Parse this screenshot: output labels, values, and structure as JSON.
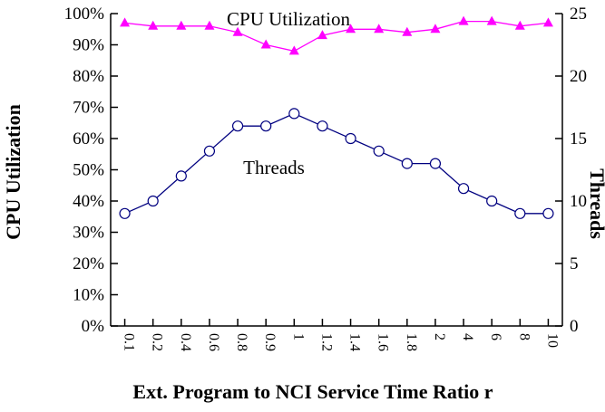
{
  "title": "CPU Utilization",
  "threads_inplot_label": "Threads",
  "axes": {
    "left_label": "CPU Utilization",
    "right_label": "Threads",
    "x_label": "Ext. Program to NCI Service Time Ratio r",
    "left_ticks": [
      "0%",
      "10%",
      "20%",
      "30%",
      "40%",
      "50%",
      "60%",
      "70%",
      "80%",
      "90%",
      "100%"
    ],
    "right_ticks": [
      "0",
      "5",
      "10",
      "15",
      "20",
      "25"
    ]
  },
  "colors": {
    "cpu_series": "#ff00ff",
    "threads_series": "#000080",
    "axis": "#000000"
  },
  "chart_data": {
    "type": "line",
    "categories": [
      "0.1",
      "0.2",
      "0.4",
      "0.6",
      "0.8",
      "0.9",
      "1",
      "1.2",
      "1.4",
      "1.6",
      "1.8",
      "2",
      "4",
      "6",
      "8",
      "10"
    ],
    "series": [
      {
        "name": "CPU Utilization",
        "axis": "left",
        "marker": "triangle",
        "color": "#ff00ff",
        "values": [
          97,
          96,
          96,
          96,
          94,
          90,
          88,
          93,
          95,
          95,
          94,
          95,
          97.5,
          97.5,
          96,
          97
        ]
      },
      {
        "name": "Threads",
        "axis": "right",
        "marker": "circle-open",
        "color": "#000080",
        "values": [
          9,
          10,
          12,
          14,
          16,
          16,
          17,
          16,
          15,
          14,
          13,
          13,
          11,
          10,
          9,
          9
        ]
      }
    ],
    "title": "CPU Utilization",
    "xlabel": "Ext. Program to NCI Service Time Ratio r",
    "ylabel_left": "CPU Utilization",
    "ylabel_right": "Threads",
    "ylim_left": [
      0,
      100
    ],
    "ylim_right": [
      0,
      25
    ],
    "left_tick_step": 10,
    "right_tick_step": 5,
    "grid": false,
    "legend": "in-plot text labels"
  }
}
